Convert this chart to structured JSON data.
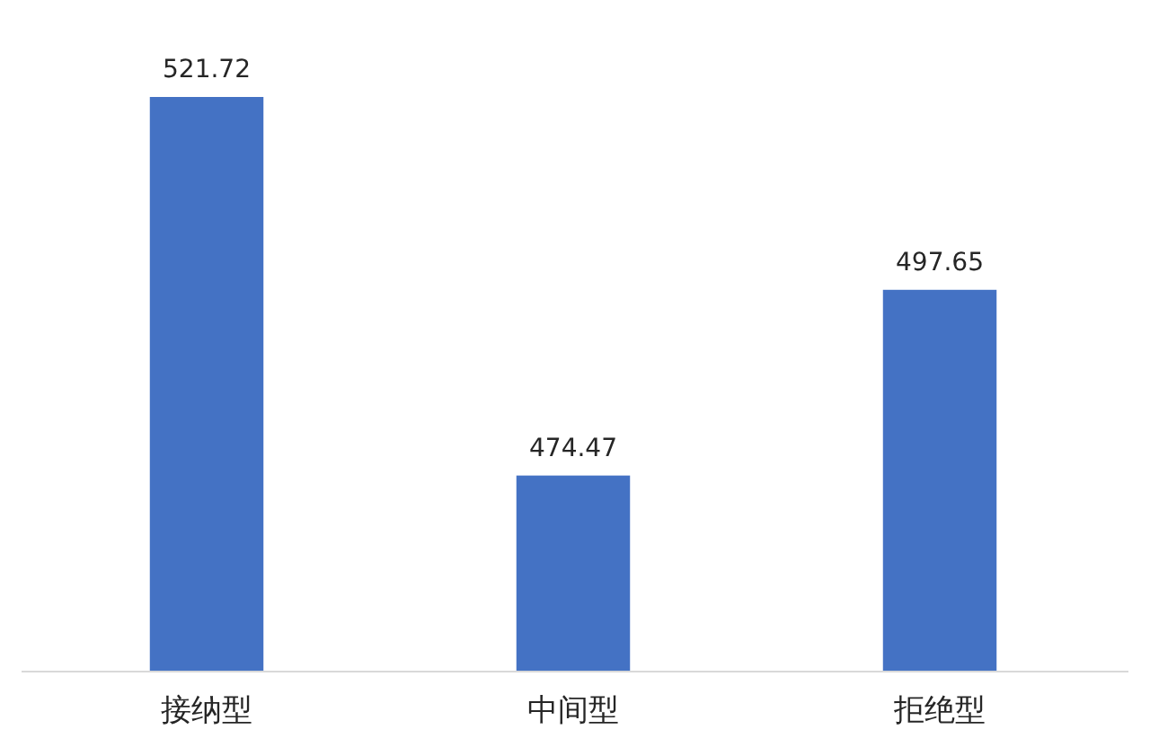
{
  "chart_data": {
    "type": "bar",
    "categories": [
      "接纳型",
      "中间型",
      "拒绝型"
    ],
    "values": [
      521.72,
      474.47,
      497.65
    ],
    "color": "#4472c4",
    "ylim": [
      450,
      521.72
    ],
    "data_labels": true,
    "tick_labels": "x"
  }
}
